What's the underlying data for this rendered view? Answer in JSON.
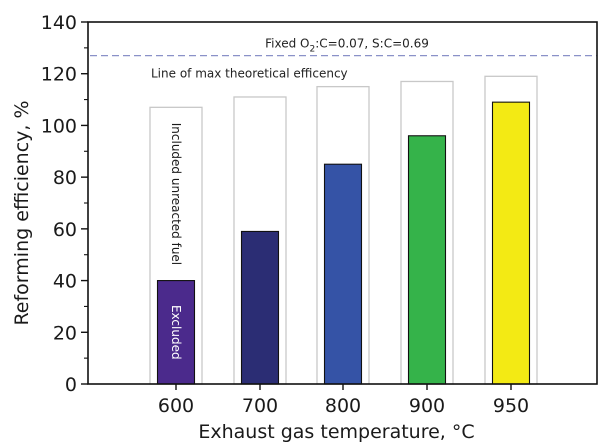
{
  "chart_data": {
    "type": "bar",
    "categories": [
      "600",
      "700",
      "800",
      "900",
      "950"
    ],
    "series": [
      {
        "values": [
          107,
          111,
          115,
          117,
          119
        ]
      },
      {
        "values": [
          40,
          59,
          85,
          96,
          109
        ]
      }
    ],
    "colors": [
      "#4b2a8c",
      "#2b2d74",
      "#3553a6",
      "#35b34a",
      "#f3ea14"
    ],
    "outline_color": "#c8c8c8",
    "max_line": {
      "value": 127,
      "label": "Line of max theoretical efficency",
      "color": "#8a91c8"
    },
    "condition_label": {
      "prefix": "Fixed O",
      "subscript": "2",
      "suffix": ":C=0.07, S:C=0.69"
    },
    "bar_annotations": {
      "included": "Included unreacted fuel",
      "excluded": "Excluded"
    },
    "xlabel": "Exhaust gas temperature, °C",
    "ylabel": "Reforming efficiency, %",
    "ylim": [
      0,
      140
    ],
    "yticks": [
      0,
      20,
      40,
      60,
      80,
      100,
      120,
      140
    ],
    "grid": false
  }
}
